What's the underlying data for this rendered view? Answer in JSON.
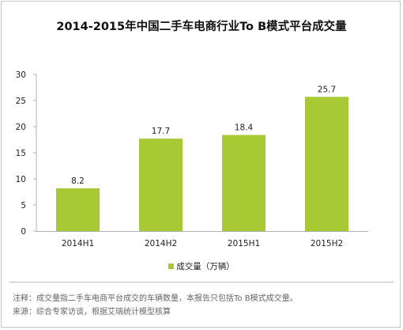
{
  "chart_data": {
    "type": "bar",
    "title": "2014-2015年中国二手车电商行业To B模式平台成交量",
    "categories": [
      "2014H1",
      "2014H2",
      "2015H1",
      "2015H2"
    ],
    "series": [
      {
        "name": "成交量（万辆）",
        "values": [
          8.2,
          17.7,
          18.4,
          25.7
        ],
        "color": "#a6c934"
      }
    ],
    "data_labels": [
      "8.2",
      "17.7",
      "18.4",
      "25.7"
    ],
    "yticks": [
      "0",
      "5",
      "10",
      "15",
      "20",
      "25",
      "30"
    ],
    "ytick_values": [
      0,
      5,
      10,
      15,
      20,
      25,
      30
    ],
    "ylim": [
      0,
      30
    ],
    "xlabel": "",
    "ylabel": "",
    "grid": false,
    "legend_position": "bottom-center"
  },
  "legend": {
    "label": "成交量（万辆）",
    "color": "#a6c934"
  },
  "notes": {
    "line1": "注释：成交量指二手车电商平台成交的车辆数量，本报告只包括To B模式成交量。",
    "line2": "来源：综合专家访谈，根据艾瑞统计模型核算"
  }
}
